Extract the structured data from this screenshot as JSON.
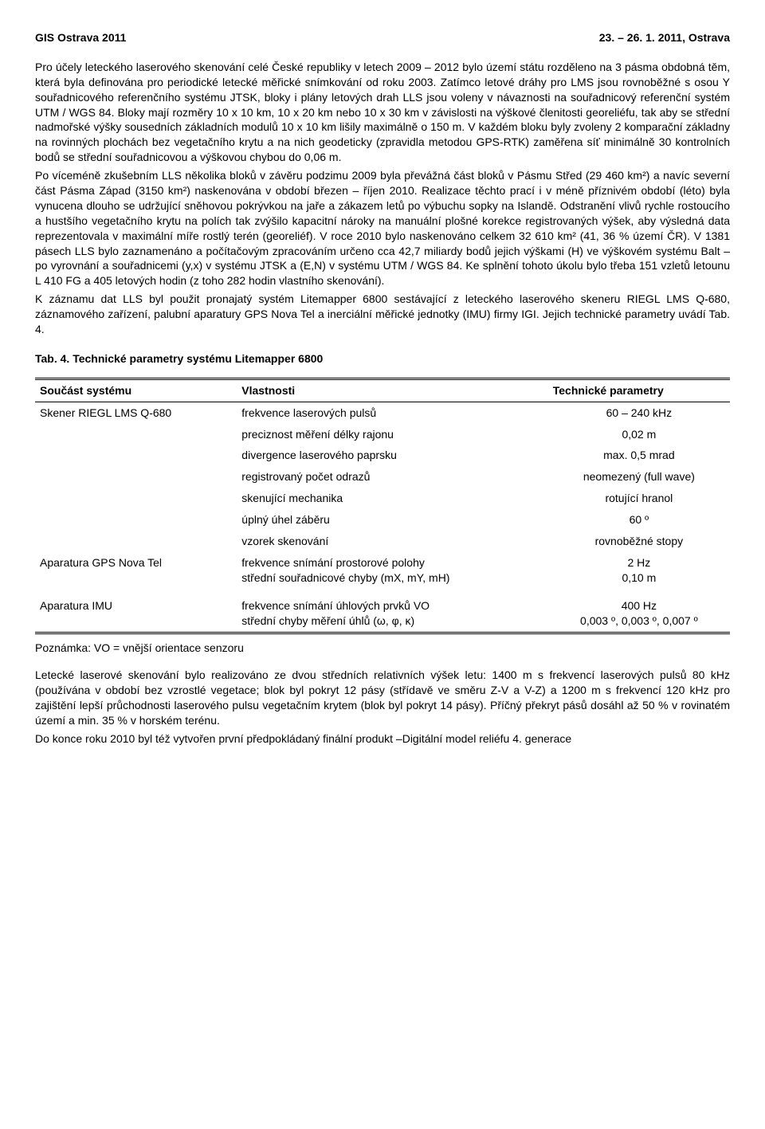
{
  "header": {
    "left": "GIS Ostrava 2011",
    "right": "23. – 26. 1. 2011, Ostrava"
  },
  "paragraphs": {
    "p1": "Pro účely leteckého laserového skenování celé České republiky v letech 2009 – 2012 bylo území státu rozděleno na 3 pásma obdobná těm, která byla definována pro periodické letecké měřické snímkování od roku 2003. Zatímco letové dráhy pro LMS jsou rovnoběžné s osou Y souřadnicového referenčního systému JTSK, bloky i plány letových drah LLS jsou voleny v návaznosti na souřadnicový referenční systém UTM / WGS 84. Bloky mají rozměry 10 x 10 km, 10 x 20 km nebo 10 x 30 km v závislosti na výškové členitosti georeliéfu, tak aby se střední nadmořské výšky sousedních základních modulů 10 x 10 km lišily maximálně o 150 m. V každém bloku byly zvoleny 2 komparační základny na rovinných plochách bez vegetačního krytu a na nich geodeticky (zpravidla metodou GPS-RTK) zaměřena síť minimálně 30 kontrolních bodů se střední souřadnicovou a výškovou chybou do 0,06 m.",
    "p2": "Po víceméně zkušebním LLS několika bloků v závěru podzimu 2009 byla převážná část bloků v Pásmu Střed (29 460 km²) a navíc severní část Pásma Západ (3150 km²) naskenována v období březen – říjen 2010. Realizace těchto prací i v méně příznivém období (léto) byla vynucena dlouho se udržující sněhovou pokrývkou na jaře a zákazem letů po výbuchu sopky na Islandě. Odstranění vlivů rychle rostoucího a hustšího vegetačního krytu na polích tak zvýšilo kapacitní nároky na manuální plošné korekce registrovaných výšek, aby výsledná data reprezentovala v maximální míře rostlý terén (georeliéf). V roce 2010 bylo naskenováno celkem 32 610 km² (41, 36 % území ČR). V 1381 pásech LLS bylo zaznamenáno a počítačovým zpracováním určeno cca 42,7 miliardy bodů jejich výškami (H) ve výškovém systému Balt – po vyrovnání a souřadnicemi (y,x) v systému JTSK a (E,N) v systému UTM / WGS 84. Ke splnění tohoto úkolu bylo třeba 151 vzletů letounu L 410 FG a 405 letových hodin (z toho 282 hodin vlastního skenování).",
    "p3": "K záznamu dat LLS byl použit pronajatý systém Litemapper 6800 sestávající z leteckého laserového skeneru RIEGL LMS Q-680, záznamového zařízení, palubní aparatury GPS Nova Tel a inerciální měřické jednotky (IMU) firmy IGI. Jejich technické parametry uvádí Tab. 4."
  },
  "table": {
    "caption": "Tab. 4. Technické parametry systému Litemapper 6800",
    "headers": [
      "Součást systému",
      "Vlastnosti",
      "Technické parametry"
    ],
    "rows": [
      {
        "c0": "Skener RIEGL LMS Q-680",
        "c1": "frekvence laserových pulsů",
        "c2": "60 – 240 kHz"
      },
      {
        "c0": "",
        "c1": "preciznost měření délky rajonu",
        "c2": "0,02 m"
      },
      {
        "c0": "",
        "c1": "divergence laserového paprsku",
        "c2": "max. 0,5 mrad"
      },
      {
        "c0": "",
        "c1": "registrovaný počet odrazů",
        "c2": "neomezený (full wave)"
      },
      {
        "c0": "",
        "c1": "skenující mechanika",
        "c2": "rotující hranol"
      },
      {
        "c0": "",
        "c1": "úplný úhel záběru",
        "c2": "60 º"
      },
      {
        "c0": "",
        "c1": "vzorek skenování",
        "c2": "rovnoběžné stopy"
      },
      {
        "c0": "Aparatura GPS Nova Tel",
        "c1": "frekvence snímání prostorové polohy\nstřední souřadnicové chyby (mX, mY, mH)",
        "c2": "2 Hz\n0,10 m"
      },
      {
        "c0": "",
        "c1": "",
        "c2": ""
      },
      {
        "c0": "Aparatura IMU",
        "c1": "frekvence snímání úhlových prvků VO\nstřední chyby měření úhlů (ω, φ, κ)",
        "c2": "400 Hz\n0,003 º, 0,003 º, 0,007 º"
      }
    ],
    "note": "Poznámka: VO = vnější orientace senzoru"
  },
  "bottom": {
    "p1": "Letecké laserové skenování bylo realizováno ze dvou středních relativních výšek letu: 1400 m s frekvencí laserových pulsů 80 kHz (používána v období bez vzrostlé vegetace; blok byl pokryt 12 pásy (střídavě ve směru Z-V a V-Z) a 1200 m s frekvencí 120 kHz pro zajištění lepší průchodnosti laserového pulsu vegetačním krytem (blok byl pokryt 14 pásy). Příčný překryt pásů dosáhl až 50 % v rovinatém území a min. 35 % v horském terénu.",
    "p2": "Do konce roku 2010 byl též vytvořen první předpokládaný finální produkt –Digitální model reliéfu 4. generace"
  }
}
